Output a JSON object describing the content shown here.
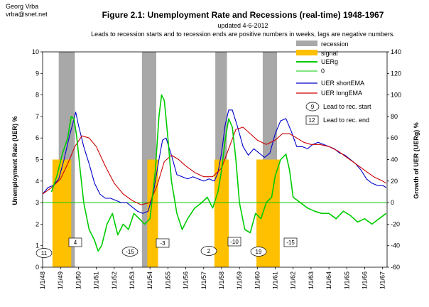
{
  "header": {
    "author_name": "Georg Vrba",
    "author_email": "vrba@snet.net"
  },
  "chart_data": {
    "type": "line",
    "title": "Figure 2.1:   Unemployment Rate and Recessions (real-time) 1948-1967",
    "subtitle": "updated 4-6-2012",
    "note": "Leads to recession starts and to recession ends are positive numbers in weeks, lags are negative numbers.",
    "ylabel": "Unemployment Rate (UER) %",
    "y2label": "Growth of UER (UERg) %",
    "ylim": [
      0,
      10
    ],
    "y2lim": [
      -60,
      140
    ],
    "yticks": [
      "0",
      "1",
      "2",
      "3",
      "4",
      "5",
      "6",
      "7",
      "8",
      "9",
      "10"
    ],
    "y2ticks": [
      "-60",
      "-40",
      "-20",
      "0",
      "20",
      "40",
      "60",
      "80",
      "100",
      "120",
      "140"
    ],
    "xlim": [
      1948.0,
      1967.25
    ],
    "xticks": [
      "1/1/48",
      "1/1/49",
      "1/1/50",
      "1/1/51",
      "1/1/52",
      "1/1/53",
      "1/1/54",
      "1/1/55",
      "1/1/56",
      "1/1/57",
      "1/1/58",
      "1/1/59",
      "1/1/60",
      "1/1/61",
      "1/1/62",
      "1/1/63",
      "1/1/64",
      "1/1/65",
      "1/1/66",
      "1/1/67"
    ],
    "recessions": [
      [
        1948.9,
        1949.8
      ],
      [
        1953.55,
        1954.35
      ],
      [
        1957.65,
        1958.3
      ],
      [
        1960.3,
        1961.1
      ]
    ],
    "signals": [
      [
        1948.55,
        1949.6
      ],
      [
        1953.85,
        1954.45
      ],
      [
        1957.6,
        1958.4
      ],
      [
        1959.95,
        1961.25
      ]
    ],
    "lead_start": [
      11,
      -15,
      2,
      19
    ],
    "lead_end": [
      4,
      -3,
      -10,
      -15
    ],
    "series": [
      {
        "name": "UER shortEMA",
        "color": "#0000cc",
        "axis": "left",
        "x": [
          1948.0,
          1948.3,
          1948.6,
          1948.9,
          1949.2,
          1949.5,
          1949.7,
          1949.85,
          1950.0,
          1950.3,
          1950.6,
          1950.9,
          1951.2,
          1951.5,
          1951.8,
          1952.1,
          1952.4,
          1952.7,
          1953.0,
          1953.3,
          1953.6,
          1953.9,
          1954.2,
          1954.5,
          1954.7,
          1954.9,
          1955.2,
          1955.5,
          1955.8,
          1956.1,
          1956.4,
          1956.7,
          1957.0,
          1957.3,
          1957.6,
          1957.8,
          1958.0,
          1958.2,
          1958.4,
          1958.6,
          1958.9,
          1959.2,
          1959.5,
          1959.8,
          1960.1,
          1960.4,
          1960.7,
          1961.0,
          1961.3,
          1961.6,
          1961.9,
          1962.2,
          1962.5,
          1962.8,
          1963.1,
          1963.4,
          1963.7,
          1964.0,
          1964.3,
          1964.6,
          1964.9,
          1965.2,
          1965.5,
          1965.8,
          1966.1,
          1966.4,
          1966.7,
          1967.0,
          1967.2
        ],
        "values": [
          3.4,
          3.7,
          3.8,
          4.1,
          5.0,
          6.1,
          6.7,
          7.2,
          6.6,
          5.6,
          4.8,
          3.9,
          3.4,
          3.2,
          3.2,
          3.1,
          3.0,
          3.0,
          2.8,
          2.6,
          2.5,
          2.6,
          3.5,
          5.0,
          5.9,
          6.0,
          5.2,
          4.3,
          4.2,
          4.1,
          4.2,
          4.1,
          4.0,
          4.1,
          4.0,
          4.4,
          5.3,
          6.6,
          7.3,
          7.3,
          6.5,
          5.6,
          5.2,
          5.5,
          5.3,
          5.1,
          5.3,
          6.2,
          6.8,
          6.9,
          6.3,
          5.6,
          5.6,
          5.5,
          5.7,
          5.8,
          5.7,
          5.6,
          5.5,
          5.3,
          5.2,
          5.0,
          4.8,
          4.5,
          4.1,
          3.9,
          3.8,
          3.8,
          3.7
        ]
      },
      {
        "name": "UER longEMA",
        "color": "#cc0000",
        "axis": "left",
        "x": [
          1948.0,
          1948.5,
          1949.0,
          1949.4,
          1949.8,
          1950.2,
          1950.6,
          1951.0,
          1951.5,
          1952.0,
          1952.5,
          1953.0,
          1953.5,
          1954.0,
          1954.4,
          1954.8,
          1955.2,
          1955.6,
          1956.0,
          1956.5,
          1957.0,
          1957.5,
          1958.0,
          1958.4,
          1958.8,
          1959.2,
          1959.6,
          1960.0,
          1960.5,
          1961.0,
          1961.4,
          1961.8,
          1962.2,
          1962.6,
          1963.0,
          1963.5,
          1964.0,
          1964.5,
          1965.0,
          1965.5,
          1966.0,
          1966.5,
          1967.0,
          1967.2
        ],
        "values": [
          3.4,
          3.7,
          4.1,
          4.8,
          5.6,
          6.1,
          6.0,
          5.6,
          4.7,
          3.9,
          3.4,
          3.1,
          2.9,
          3.0,
          3.8,
          4.9,
          5.2,
          5.0,
          4.7,
          4.4,
          4.2,
          4.2,
          4.6,
          5.5,
          6.4,
          6.5,
          6.2,
          5.9,
          5.7,
          5.9,
          6.2,
          6.2,
          6.0,
          5.8,
          5.7,
          5.7,
          5.6,
          5.4,
          5.1,
          4.8,
          4.5,
          4.2,
          4.0,
          3.9
        ]
      },
      {
        "name": "UERg",
        "color": "#00cc00",
        "axis": "right",
        "x": [
          1948.5,
          1948.8,
          1949.1,
          1949.4,
          1949.6,
          1949.75,
          1949.9,
          1950.1,
          1950.3,
          1950.6,
          1950.9,
          1951.1,
          1951.3,
          1951.6,
          1951.9,
          1952.2,
          1952.5,
          1952.8,
          1953.1,
          1953.4,
          1953.7,
          1954.0,
          1954.3,
          1954.5,
          1954.65,
          1954.8,
          1955.0,
          1955.2,
          1955.5,
          1955.8,
          1956.1,
          1956.5,
          1956.9,
          1957.2,
          1957.5,
          1957.8,
          1958.0,
          1958.2,
          1958.4,
          1958.6,
          1958.8,
          1959.0,
          1959.3,
          1959.6,
          1959.9,
          1960.2,
          1960.5,
          1960.8,
          1961.0,
          1961.3,
          1961.6,
          1961.8,
          1962.0,
          1962.4,
          1962.8,
          1963.2,
          1963.6,
          1964.0,
          1964.4,
          1964.8,
          1965.2,
          1965.6,
          1966.0,
          1966.4,
          1966.8,
          1967.2
        ],
        "values": [
          10,
          25,
          45,
          60,
          80,
          78,
          62,
          30,
          0,
          -25,
          -35,
          -45,
          -40,
          -20,
          -10,
          -30,
          -20,
          -25,
          -10,
          -15,
          -20,
          -15,
          30,
          80,
          100,
          95,
          60,
          20,
          -10,
          -25,
          -15,
          -5,
          0,
          5,
          -5,
          10,
          30,
          58,
          78,
          70,
          40,
          0,
          -25,
          -28,
          -10,
          -15,
          0,
          5,
          25,
          40,
          45,
          30,
          5,
          0,
          -5,
          -8,
          -10,
          -10,
          -15,
          -8,
          -12,
          -18,
          -15,
          -20,
          -15,
          -10
        ]
      }
    ]
  },
  "legend": {
    "recession": "recession",
    "signal": "signal",
    "uerg": "UERg",
    "zero": "0",
    "short": "UER shortEMA",
    "long": "UER longEMA",
    "lead_start_sample": "9",
    "lead_start_label": "Lead to rec. start",
    "lead_end_sample": "12",
    "lead_end_label": "Lead to rec. end"
  },
  "colors": {
    "recession": "#a8a8a8",
    "signal": "#ffc000",
    "uerg": "#00cc00",
    "short": "#0000cc",
    "long": "#cc0000",
    "zero": "#00cc00"
  }
}
